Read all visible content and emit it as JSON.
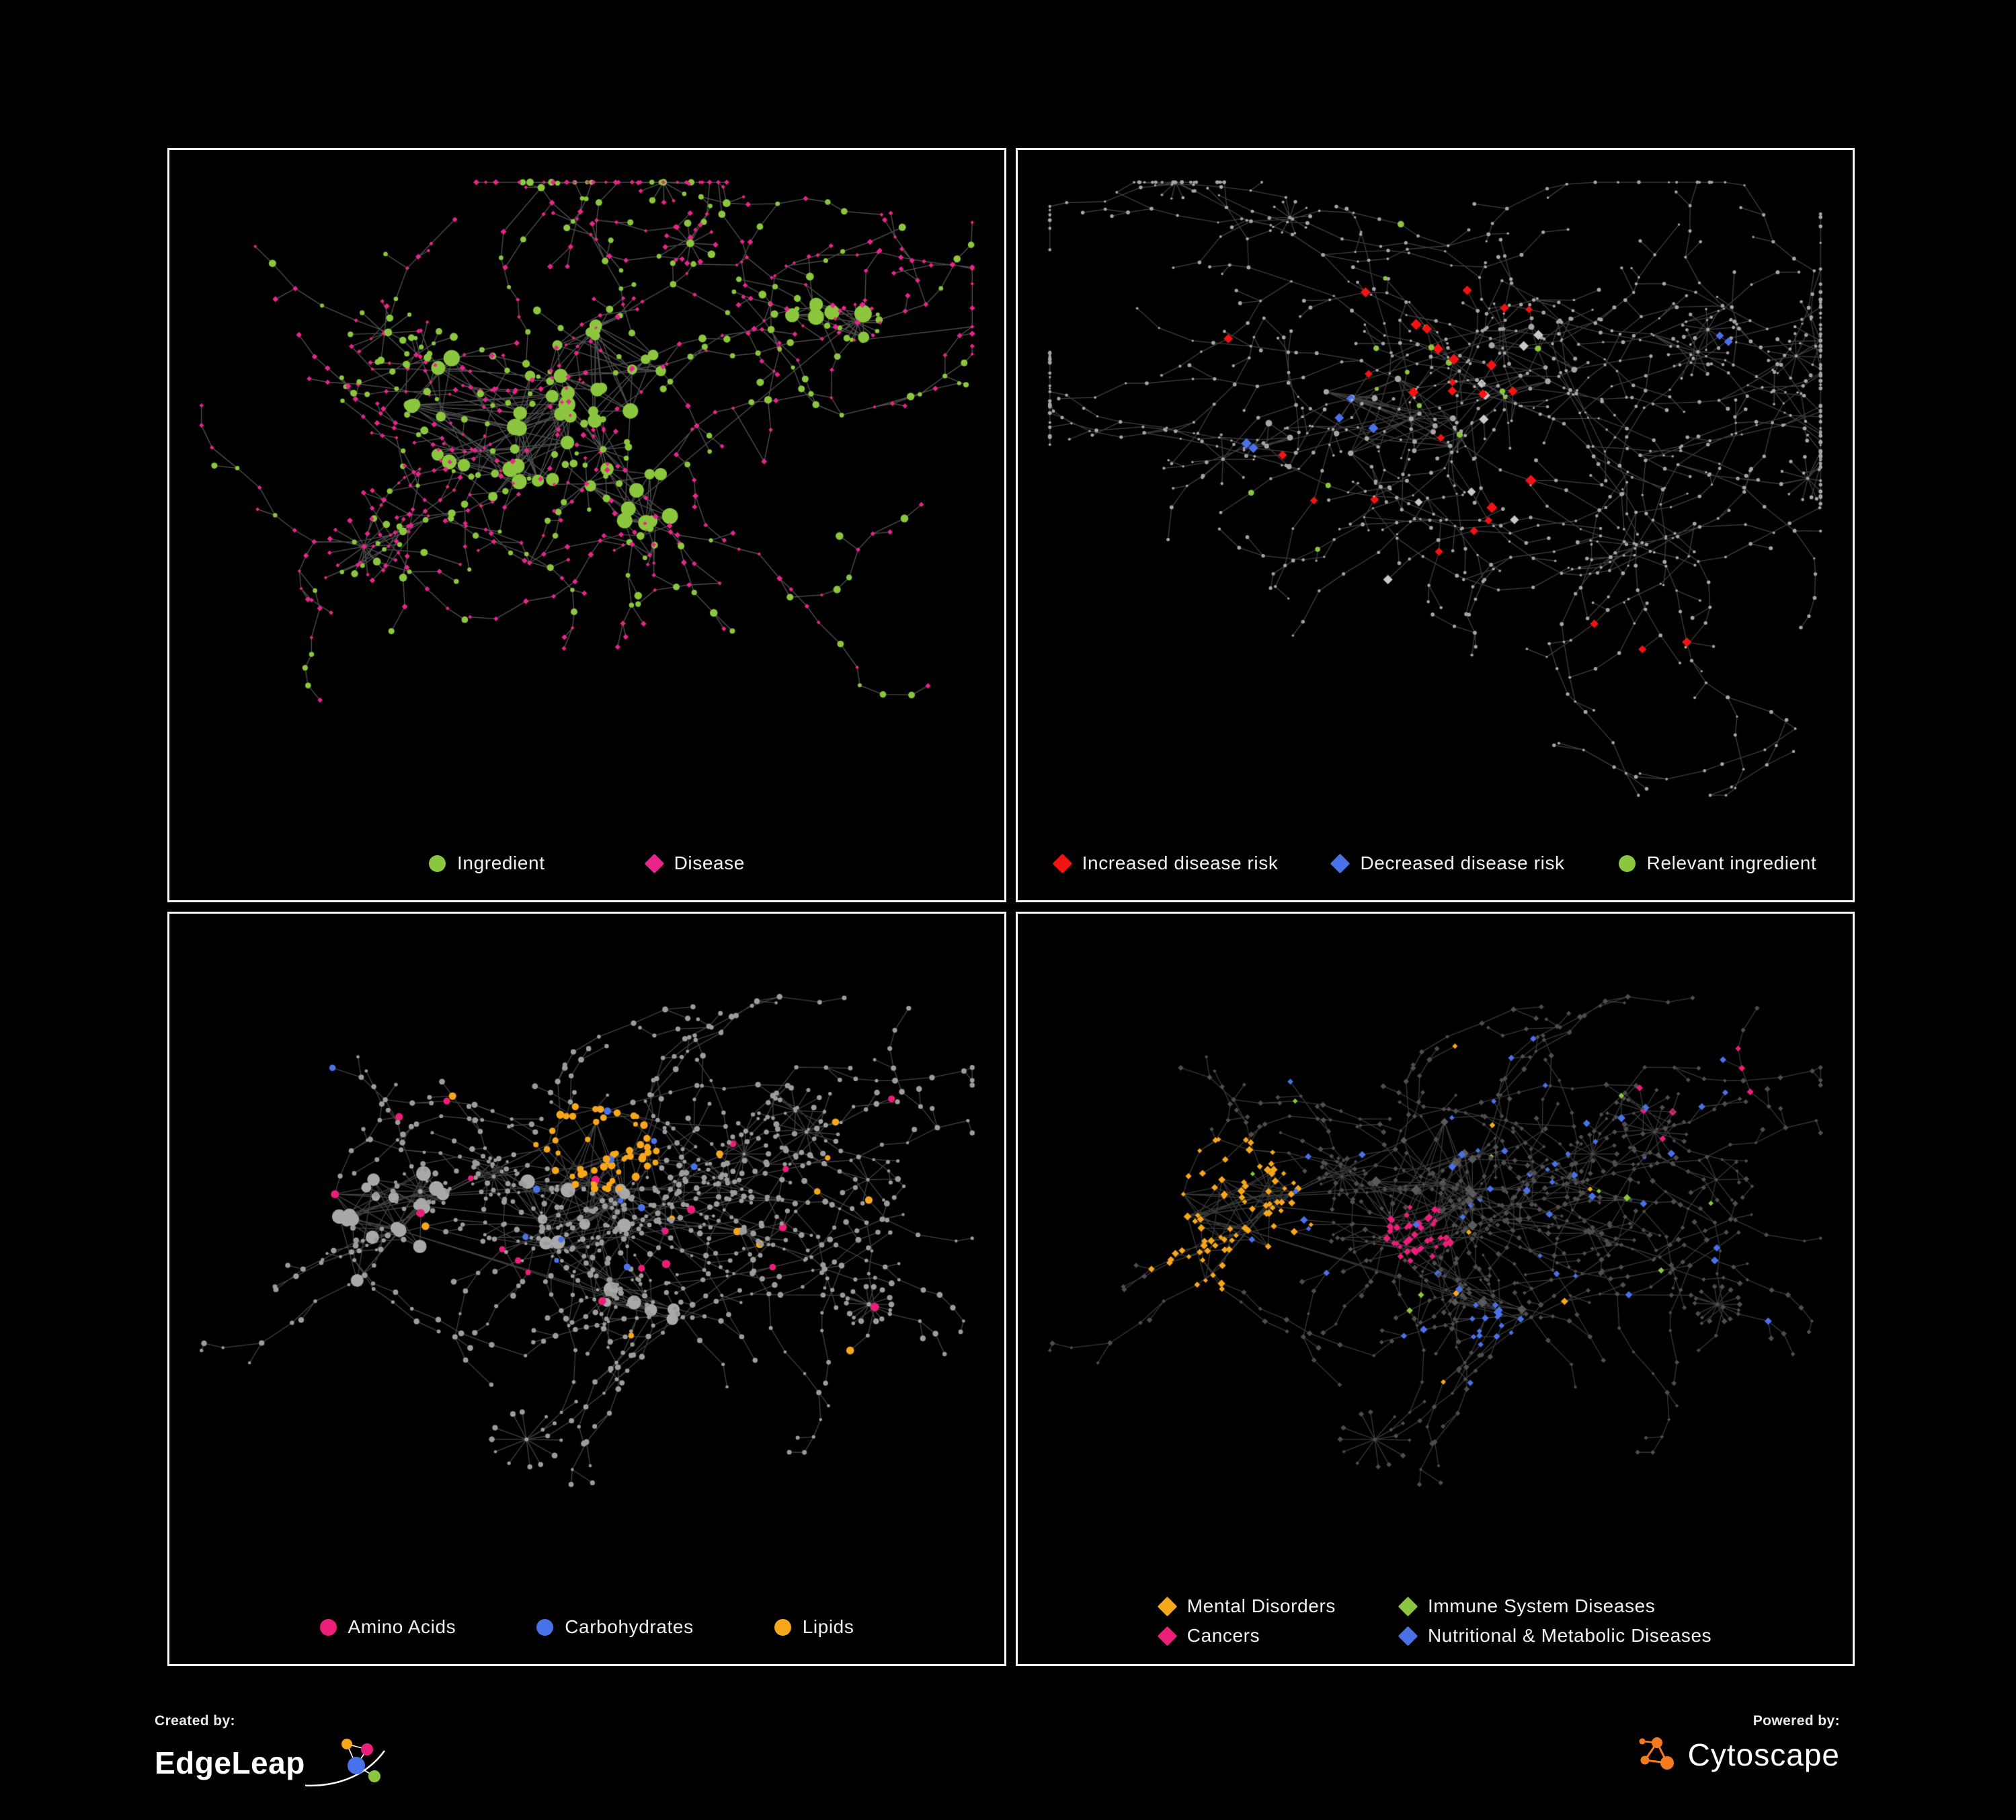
{
  "page": {
    "background": "#000000",
    "panel_border": "#fcfcfc"
  },
  "footer": {
    "created_by_label": "Created by:",
    "created_by_name": "EdgeLeap",
    "powered_by_label": "Powered by:",
    "powered_by_name": "Cytoscape",
    "edgeleap_logo_colors": [
      "#F7A71B",
      "#EC1E79",
      "#4A72E8",
      "#8CC63E"
    ],
    "cytoscape_logo_color": "#F47B20"
  },
  "chart_data": {
    "type": "network",
    "panels": [
      {
        "legend": [
          {
            "label": "Ingredient",
            "color": "#8CC63E",
            "shape": "circle"
          },
          {
            "label": "Disease",
            "color": "#E9258C",
            "shape": "diamond"
          }
        ],
        "render": {
          "seed": 7,
          "clusters": [
            {
              "x": 0.38,
              "y": 0.4,
              "hubs": 26,
              "spread": 0.12
            },
            {
              "x": 0.52,
              "y": 0.32,
              "hubs": 14,
              "spread": 0.08
            },
            {
              "x": 0.55,
              "y": 0.5,
              "hubs": 10,
              "spread": 0.07
            },
            {
              "x": 0.8,
              "y": 0.24,
              "hubs": 6,
              "spread": 0.06
            }
          ],
          "branches": 120,
          "branch_len": 6,
          "step": 0.034,
          "stars": 7,
          "star_leaves": [
            8,
            16
          ],
          "star_radius": 0.034,
          "extra_links": 140,
          "palette": [
            {
              "color": "#E9258C",
              "shape": "diamond",
              "w": 0.64,
              "size": [
                2.6,
                4.6
              ]
            },
            {
              "color": "#8CC63E",
              "shape": "circle",
              "w": 0.36,
              "size": [
                3.0,
                6.0
              ]
            }
          ],
          "hub": {
            "color": "#8CC63E",
            "shape": "circle",
            "size": [
              7,
              13
            ]
          },
          "sprinkles": [],
          "edge_color": "#9a9a9a",
          "edge_alpha": 0.5,
          "edge_width": 1.4
        }
      },
      {
        "legend": [
          {
            "label": "Increased disease risk",
            "color": "#F21313",
            "shape": "diamond"
          },
          {
            "label": "Decreased disease risk",
            "color": "#4A72E8",
            "shape": "diamond"
          },
          {
            "label": "Relevant ingredient",
            "color": "#8CC63E",
            "shape": "circle"
          }
        ],
        "render": {
          "seed": 13,
          "clusters": [
            {
              "x": 0.45,
              "y": 0.38,
              "hubs": 16,
              "spread": 0.1
            },
            {
              "x": 0.62,
              "y": 0.3,
              "hubs": 6,
              "spread": 0.06
            },
            {
              "x": 0.3,
              "y": 0.45,
              "hubs": 6,
              "spread": 0.06
            }
          ],
          "branches": 150,
          "branch_len": 8,
          "step": 0.04,
          "stars": 9,
          "star_leaves": [
            6,
            12
          ],
          "star_radius": 0.03,
          "extra_links": 50,
          "palette": [
            {
              "color": "#A6A6A6",
              "shape": "circle",
              "w": 1,
              "size": [
                1.6,
                3.0
              ]
            }
          ],
          "hub": {
            "color": "#A6A6A6",
            "shape": "circle",
            "size": [
              3,
              5
            ]
          },
          "sprinkles": [
            {
              "x": 0.45,
              "y": 0.4,
              "r": 0.26,
              "count": 26,
              "color": "#F21313",
              "shape": "diamond",
              "size": [
                5.5,
                8.5
              ],
              "mode": "random"
            },
            {
              "x": 0.75,
              "y": 0.8,
              "r": 0.1,
              "count": 3,
              "color": "#F21313",
              "shape": "diamond",
              "size": [
                6,
                8
              ],
              "mode": "random"
            },
            {
              "x": 0.34,
              "y": 0.44,
              "r": 0.1,
              "count": 5,
              "color": "#4A72E8",
              "shape": "diamond",
              "size": [
                5.5,
                8
              ],
              "mode": "random"
            },
            {
              "x": 0.86,
              "y": 0.26,
              "r": 0.05,
              "count": 2,
              "color": "#4A72E8",
              "shape": "diamond",
              "size": [
                6,
                8
              ],
              "mode": "near"
            },
            {
              "x": 0.44,
              "y": 0.42,
              "r": 0.3,
              "count": 9,
              "color": "#C9C9C9",
              "shape": "diamond",
              "size": [
                5.5,
                8
              ],
              "mode": "random"
            },
            {
              "x": 0.43,
              "y": 0.38,
              "r": 0.3,
              "count": 16,
              "color": "#8CC63E",
              "shape": "circle",
              "size": [
                3,
                5
              ],
              "mode": "random"
            }
          ],
          "edge_color": "#9a9a9a",
          "edge_alpha": 0.4,
          "edge_width": 1.3
        }
      },
      {
        "legend": [
          {
            "label": "Amino Acids",
            "color": "#EC1E79",
            "shape": "circle"
          },
          {
            "label": "Carbohydrates",
            "color": "#4A72E8",
            "shape": "circle"
          },
          {
            "label": "Lipids",
            "color": "#F7A71B",
            "shape": "circle"
          }
        ],
        "render": {
          "seed": 33,
          "clusters": [
            {
              "x": 0.27,
              "y": 0.47,
              "hubs": 12,
              "spread": 0.1
            },
            {
              "x": 0.5,
              "y": 0.4,
              "hubs": 16,
              "spread": 0.11
            },
            {
              "x": 0.23,
              "y": 0.44,
              "hubs": 8,
              "spread": 0.06
            },
            {
              "x": 0.56,
              "y": 0.6,
              "hubs": 6,
              "spread": 0.06
            }
          ],
          "branches": 135,
          "branch_len": 7,
          "step": 0.036,
          "stars": 8,
          "star_leaves": [
            7,
            15
          ],
          "star_radius": 0.032,
          "extra_links": 70,
          "palette": [
            {
              "color": "#9C9C9C",
              "shape": "circle",
              "w": 1,
              "size": [
                2.2,
                4.5
              ]
            }
          ],
          "hub": {
            "color": "#A9A9A9",
            "shape": "circle",
            "size": [
              6,
              11
            ]
          },
          "sprinkles": [
            {
              "x": 0.52,
              "y": 0.33,
              "r": 0.2,
              "count": 60,
              "color": "#F7A71B",
              "shape": "circle",
              "size": [
                3.5,
                6
              ],
              "mode": "near"
            },
            {
              "x": 0.45,
              "y": 0.55,
              "r": 0.5,
              "count": 14,
              "color": "#F7A71B",
              "shape": "circle",
              "size": [
                4,
                6
              ],
              "mode": "random"
            },
            {
              "x": 0.52,
              "y": 0.4,
              "r": 0.13,
              "count": 12,
              "color": "#4A72E8",
              "shape": "circle",
              "size": [
                3.5,
                5.5
              ],
              "mode": "random"
            },
            {
              "x": 0.12,
              "y": 0.22,
              "r": 0.08,
              "count": 1,
              "color": "#4A72E8",
              "shape": "circle",
              "size": [
                4,
                5
              ],
              "mode": "near"
            },
            {
              "x": 0.5,
              "y": 0.5,
              "r": 0.55,
              "count": 20,
              "color": "#EC1E79",
              "shape": "circle",
              "size": [
                4,
                6.5
              ],
              "mode": "random"
            },
            {
              "x": 0.62,
              "y": 0.05,
              "r": 0.06,
              "count": 1,
              "color": "#EC1E79",
              "shape": "circle",
              "size": [
                5,
                6
              ],
              "mode": "near"
            }
          ],
          "edge_color": "#9a9a9a",
          "edge_alpha": 0.42,
          "edge_width": 1.3
        }
      },
      {
        "legend": [
          {
            "label": "Mental Disorders",
            "color": "#F7A71B",
            "shape": "diamond"
          },
          {
            "label": "Immune System Diseases",
            "color": "#8CC63E",
            "shape": "diamond"
          },
          {
            "label": "Cancers",
            "color": "#EC1E79",
            "shape": "diamond"
          },
          {
            "label": "Nutritional & Metabolic Diseases",
            "color": "#4A72E8",
            "shape": "diamond"
          }
        ],
        "render": {
          "seed": 33,
          "clusters": [
            {
              "x": 0.27,
              "y": 0.47,
              "hubs": 12,
              "spread": 0.1
            },
            {
              "x": 0.5,
              "y": 0.4,
              "hubs": 16,
              "spread": 0.11
            },
            {
              "x": 0.23,
              "y": 0.44,
              "hubs": 8,
              "spread": 0.06
            },
            {
              "x": 0.56,
              "y": 0.6,
              "hubs": 6,
              "spread": 0.06
            }
          ],
          "branches": 135,
          "branch_len": 7,
          "step": 0.036,
          "stars": 8,
          "star_leaves": [
            7,
            15
          ],
          "star_radius": 0.032,
          "extra_links": 70,
          "palette": [
            {
              "color": "#4E4E4E",
              "shape": "diamond",
              "w": 1,
              "size": [
                2.5,
                4.5
              ]
            }
          ],
          "hub": {
            "color": "#5A5A5A",
            "shape": "diamond",
            "size": [
              5,
              8
            ]
          },
          "sprinkles": [
            {
              "x": 0.22,
              "y": 0.44,
              "r": 0.16,
              "count": 85,
              "color": "#F7A71B",
              "shape": "diamond",
              "size": [
                3.5,
                6
              ],
              "mode": "near"
            },
            {
              "x": 0.35,
              "y": 0.3,
              "r": 0.45,
              "count": 14,
              "color": "#F7A71B",
              "shape": "diamond",
              "size": [
                3.5,
                5.5
              ],
              "mode": "random"
            },
            {
              "x": 0.48,
              "y": 0.47,
              "r": 0.16,
              "count": 45,
              "color": "#EC1E79",
              "shape": "diamond",
              "size": [
                3.5,
                6
              ],
              "mode": "near"
            },
            {
              "x": 0.8,
              "y": 0.22,
              "r": 0.12,
              "count": 8,
              "color": "#EC1E79",
              "shape": "diamond",
              "size": [
                4,
                6
              ],
              "mode": "random"
            },
            {
              "x": 0.65,
              "y": 0.4,
              "r": 0.42,
              "count": 55,
              "color": "#4A72E8",
              "shape": "diamond",
              "size": [
                3.5,
                6
              ],
              "mode": "random"
            },
            {
              "x": 0.57,
              "y": 0.62,
              "r": 0.09,
              "count": 16,
              "color": "#4A72E8",
              "shape": "diamond",
              "size": [
                3.5,
                5.5
              ],
              "mode": "near"
            },
            {
              "x": 0.5,
              "y": 0.45,
              "r": 0.4,
              "count": 10,
              "color": "#8CC63E",
              "shape": "diamond",
              "size": [
                3.5,
                5.5
              ],
              "mode": "random"
            }
          ],
          "edge_color": "#9a9a9a",
          "edge_alpha": 0.36,
          "edge_width": 1.3
        }
      }
    ]
  }
}
